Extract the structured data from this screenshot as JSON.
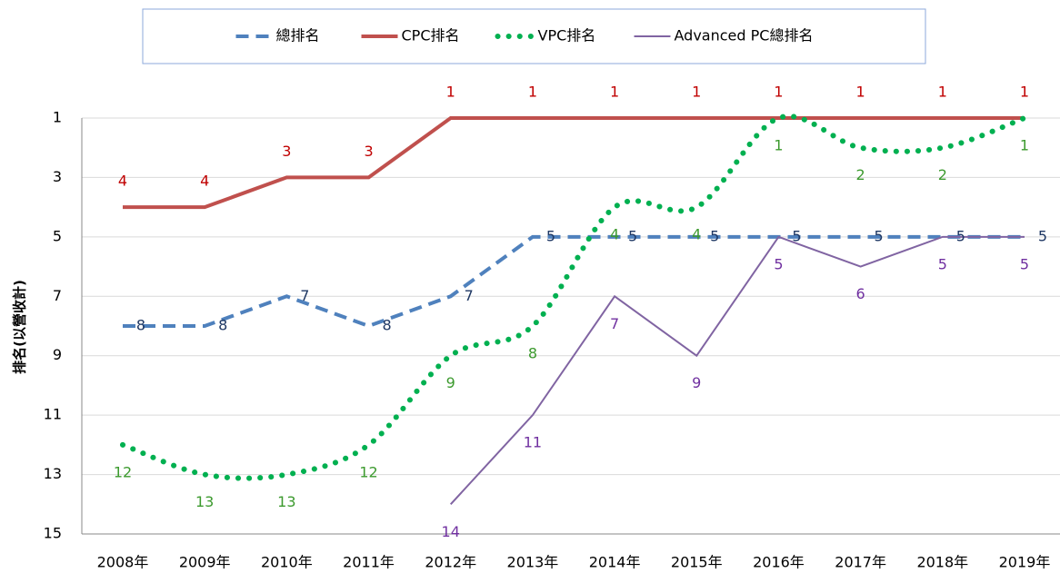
{
  "chart_data": {
    "type": "line",
    "y_label": "排名(以營收計)",
    "categories": [
      "2008年",
      "2009年",
      "2010年",
      "2011年",
      "2012年",
      "2013年",
      "2014年",
      "2015年",
      "2016年",
      "2017年",
      "2018年",
      "2019年"
    ],
    "series": [
      {
        "name": "總排名",
        "color": "#4f81bd",
        "label_color": "#1f3864",
        "dash": "dashed",
        "width": 4,
        "smooth": false,
        "label_position": "right",
        "values": [
          8,
          8,
          7,
          8,
          7,
          5,
          5,
          5,
          5,
          5,
          5,
          5
        ]
      },
      {
        "name": "CPC排名",
        "color": "#c0504d",
        "label_color": "#c00000",
        "dash": "solid",
        "width": 4,
        "smooth": false,
        "label_position": "above",
        "values": [
          4,
          4,
          3,
          3,
          1,
          1,
          1,
          1,
          1,
          1,
          1,
          1
        ]
      },
      {
        "name": "VPC排名",
        "color": "#00b050",
        "label_color": "#3c9a2e",
        "dash": "dotted",
        "width": 6,
        "smooth": true,
        "label_position": "below",
        "values": [
          12,
          13,
          13,
          12,
          9,
          8,
          4,
          4,
          1,
          2,
          2,
          1
        ]
      },
      {
        "name": "Advanced PC總排名",
        "color": "#8064a2",
        "label_color": "#7030a0",
        "dash": "solid",
        "width": 2,
        "smooth": false,
        "label_position": "below",
        "values": [
          null,
          null,
          null,
          null,
          14,
          11,
          7,
          9,
          5,
          6,
          5,
          5
        ]
      }
    ],
    "ylim": [
      1,
      15
    ],
    "y_inverted": true,
    "yticks": [
      1,
      3,
      5,
      7,
      9,
      11,
      13,
      15
    ],
    "grid": true,
    "legend": "top"
  }
}
